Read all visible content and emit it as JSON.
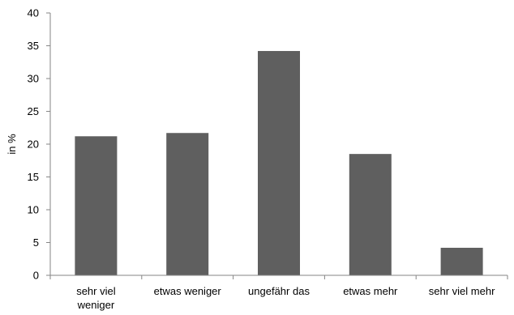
{
  "chart_data": {
    "type": "bar",
    "title": "",
    "xlabel": "",
    "ylabel": "in %",
    "ylim": [
      0,
      40
    ],
    "yticks": [
      0,
      5,
      10,
      15,
      20,
      25,
      30,
      35,
      40
    ],
    "categories": [
      [
        "sehr viel",
        "weniger"
      ],
      [
        "etwas weniger"
      ],
      [
        "ungefähr das"
      ],
      [
        "etwas mehr"
      ],
      [
        "sehr viel mehr"
      ]
    ],
    "values": [
      21.2,
      21.7,
      34.2,
      18.5,
      4.2
    ],
    "grid": false,
    "legend": "none",
    "bar_color": "#5f5f5f",
    "axis_color": "#868686"
  }
}
